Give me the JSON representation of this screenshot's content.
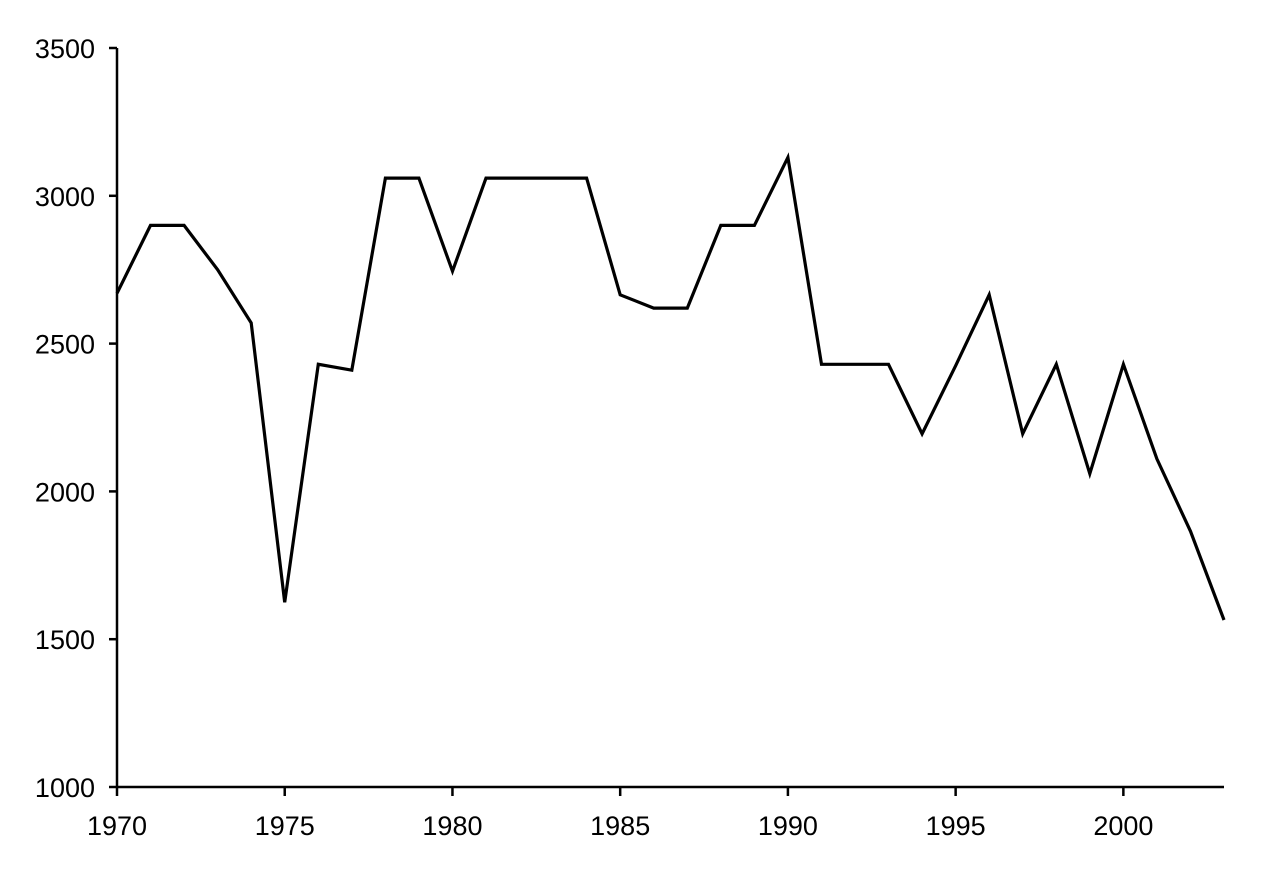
{
  "chart_data": {
    "type": "line",
    "title": "",
    "xlabel": "",
    "ylabel": "",
    "xlim": [
      1970,
      2003
    ],
    "ylim": [
      1000,
      3500
    ],
    "x_ticks": [
      1970,
      1975,
      1980,
      1985,
      1990,
      1995,
      2000
    ],
    "y_ticks": [
      1000,
      1500,
      2000,
      2500,
      3000,
      3500
    ],
    "grid": false,
    "legend": "none",
    "series": [
      {
        "color": "#000000",
        "x": [
          1970,
          1971,
          1972,
          1973,
          1974,
          1975,
          1976,
          1977,
          1978,
          1979,
          1980,
          1981,
          1982,
          1983,
          1984,
          1985,
          1986,
          1987,
          1988,
          1989,
          1990,
          1991,
          1992,
          1993,
          1994,
          1995,
          1996,
          1997,
          1998,
          1999,
          2000,
          2001,
          2002,
          2003
        ],
        "y": [
          2670,
          2900,
          2900,
          2750,
          2570,
          1625,
          2430,
          2410,
          3060,
          3060,
          2745,
          3060,
          3060,
          3060,
          3060,
          2665,
          2620,
          2620,
          2900,
          2900,
          3130,
          2430,
          2430,
          2430,
          2195,
          2425,
          2665,
          2195,
          2430,
          2060,
          2430,
          2110,
          1865,
          1565
        ]
      }
    ]
  }
}
